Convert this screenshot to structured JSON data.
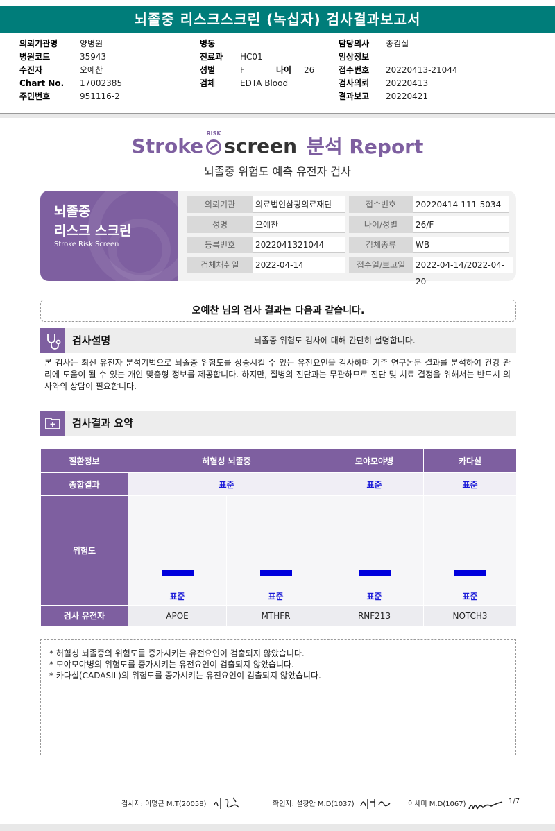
{
  "report_title": "뇌졸중 리스크스크린 (녹십자) 검사결과보고서",
  "header": {
    "col1": [
      {
        "k": "의뢰기관명",
        "v": "양병원"
      },
      {
        "k": "병원코드",
        "v": "35943"
      },
      {
        "k": "수진자",
        "v": "오예찬"
      },
      {
        "k": "Chart No.",
        "v": "17002385"
      },
      {
        "k": "주민번호",
        "v": "951116-2"
      }
    ],
    "col2": [
      {
        "k": "병동",
        "v": "-"
      },
      {
        "k": "진료과",
        "v": "HC01"
      },
      {
        "k": "성별",
        "v": "F"
      },
      {
        "k": "검체",
        "v": "EDTA Blood"
      }
    ],
    "age_key": "나이",
    "age_val": "26",
    "col3": [
      {
        "k": "담당의사",
        "v": "종검실"
      },
      {
        "k": "임상정보",
        "v": ""
      },
      {
        "k": "접수번호",
        "v": "20220413-21044"
      },
      {
        "k": "검사의뢰",
        "v": "20220413"
      },
      {
        "k": "결과보고",
        "v": "20220421"
      }
    ]
  },
  "logo": {
    "stroke": "Stroke",
    "risk": "RISK",
    "screen": "screen",
    "analysis": "분석 Report"
  },
  "subtitle": "뇌졸중 위험도 예측 유전자 검사",
  "info_panel": {
    "line1": "뇌졸중",
    "line2": "리스크 스크린",
    "en": "Stroke Risk Screen",
    "fields": [
      {
        "label": "의뢰기관",
        "value": "의료법인삼광의료재단"
      },
      {
        "label": "접수번호",
        "value": "20220414-111-5034"
      },
      {
        "label": "성명",
        "value": "오예찬"
      },
      {
        "label": "나이/성별",
        "value": "26/F"
      },
      {
        "label": "등록번호",
        "value": "2022041321044"
      },
      {
        "label": "검체종류",
        "value": "WB"
      },
      {
        "label": "검체채취일",
        "value": "2022-04-14"
      },
      {
        "label": "접수일/보고일",
        "value": "2022-04-14/2022-04-20"
      }
    ]
  },
  "result_banner": "오예찬 님의 검사 결과는 다음과 같습니다.",
  "section_desc": {
    "title": "검사설명",
    "summary": "뇌졸중 위험도 검사에 대해 간단히 설명합니다.",
    "body": "본 검사는 최신 유전자 분석기법으로 뇌졸중 위험도를 상승시킬 수 있는 유전요인을 검사하며 기존 연구논문 결과를 분석하여 건강 관리에 도움이 될 수 있는 개인 맞춤형 정보를 제공합니다. 하지만, 질병의 진단과는 무관하므로 진단 및 치료 결정을 위해서는 반드시 의사와의 상담이 필요합니다."
  },
  "section_result": {
    "title": "검사결과 요약"
  },
  "table": {
    "h_disease": "질환정보",
    "diseases": [
      "허혈성 뇌졸중",
      "모야모야병",
      "카다실"
    ],
    "h_overall": "종합결과",
    "overall": [
      "표준",
      "표준",
      "표준"
    ],
    "h_risk": "위험도",
    "risk_labels": [
      "표준",
      "표준",
      "표준",
      "표준"
    ],
    "risk_levels": [
      0.5,
      0.5,
      0.5,
      0.5
    ],
    "h_genes": "검사 유전자",
    "genes": [
      "APOE",
      "MTHFR",
      "RNF213",
      "NOTCH3"
    ]
  },
  "notes": [
    "* 허혈성 뇌졸중의 위험도를 증가시키는 유전요인이 검출되지 않았습니다.",
    "* 모야모야병의 위험도를 증가시키는 유전요인이 검출되지 않았습니다.",
    "* 카다실(CADASIL)의 위험도를 증가시키는 유전요인이 검출되지 않았습니다."
  ],
  "footer": {
    "examiner": "검사자: 이명근 M.T(20058)",
    "confirmer": "확인자: 설창안 M.D(1037)",
    "third": "이세미 M.D(1067)",
    "page": "1/7"
  },
  "colors": {
    "teal": "#007d7a",
    "purple": "#7e5fa0",
    "bar": "#0000dd"
  }
}
